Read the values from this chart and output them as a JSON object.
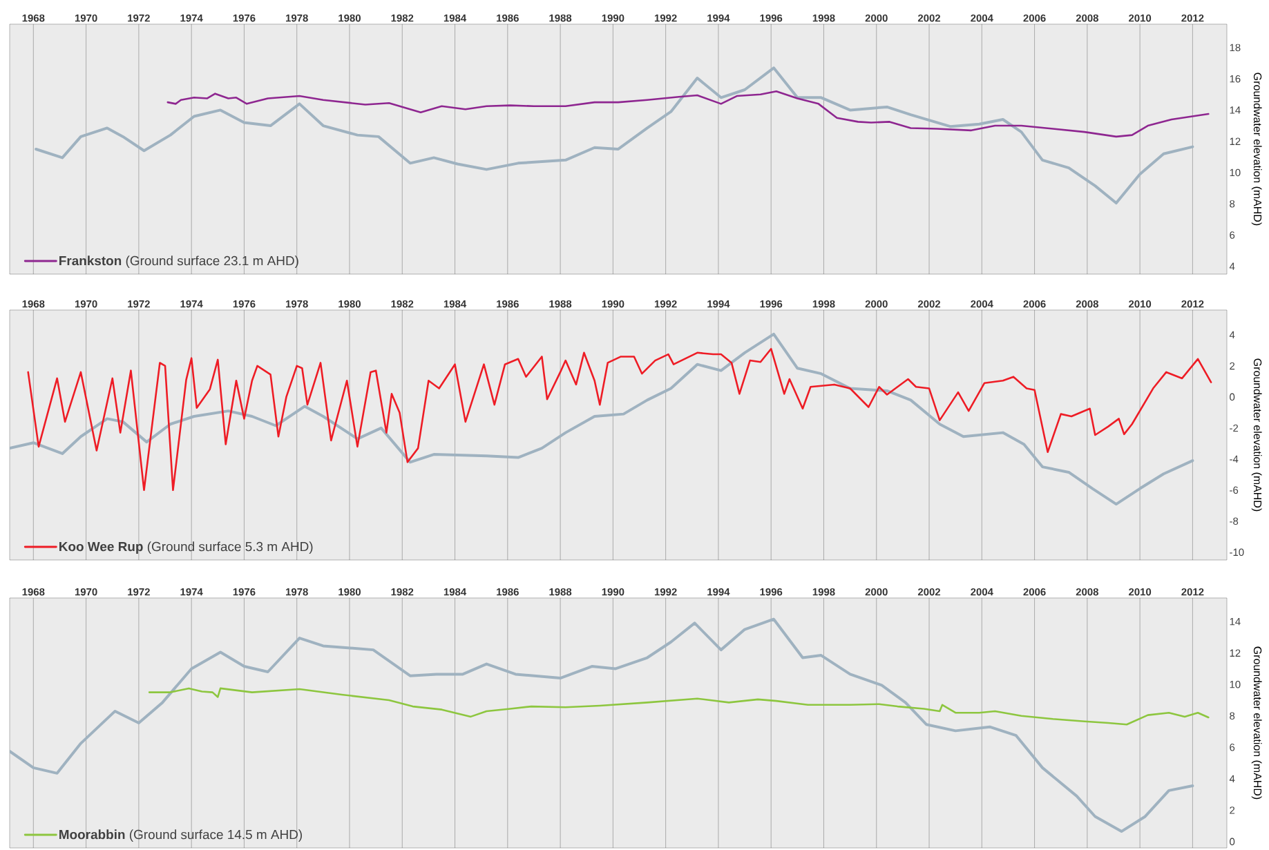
{
  "chart_data": [
    {
      "type": "line",
      "ylabel": "Groundwater elevation (mAHD)",
      "grid": "x",
      "legend": "bottom left",
      "xlim": [
        1967.1,
        2013.3
      ],
      "xticks": [
        1968,
        1970,
        1972,
        1974,
        1976,
        1978,
        1980,
        1982,
        1984,
        1986,
        1988,
        1990,
        1992,
        1994,
        1996,
        1998,
        2000,
        2002,
        2004,
        2006,
        2008,
        2010,
        2012
      ],
      "ylim": [
        3.5,
        19.5
      ],
      "yticks": [
        4,
        6,
        8,
        10,
        12,
        14,
        16,
        18
      ],
      "series": [
        {
          "color": "#9fb2c0",
          "x": [
            1968.1,
            1969.1,
            1969.8,
            1970.8,
            1971.4,
            1972.2,
            1973.2,
            1974.1,
            1975.1,
            1976.0,
            1977.0,
            1978.1,
            1979.0,
            1980.3,
            1981.1,
            1982.3,
            1983.2,
            1984.1,
            1985.2,
            1986.4,
            1988.2,
            1989.3,
            1990.2,
            1991.3,
            1992.2,
            1993.2,
            1994.1,
            1995.0,
            1996.1,
            1997.0,
            1997.9,
            1999.0,
            2000.4,
            2001.3,
            2002.8,
            2003.9,
            2004.8,
            2005.5,
            2006.3,
            2007.3,
            2008.3,
            2009.1,
            2010.0,
            2010.9,
            2012.0
          ],
          "values": [
            11.5,
            10.95,
            12.3,
            12.85,
            12.3,
            11.4,
            12.4,
            13.6,
            14.0,
            13.2,
            13.0,
            14.4,
            13.0,
            12.4,
            12.3,
            10.6,
            10.95,
            10.55,
            10.2,
            10.6,
            10.8,
            11.6,
            11.5,
            12.85,
            13.9,
            16.05,
            14.8,
            15.3,
            16.7,
            14.8,
            14.8,
            14.0,
            14.2,
            13.7,
            12.95,
            13.1,
            13.4,
            12.6,
            10.8,
            10.3,
            9.15,
            8.05,
            9.9,
            11.2,
            11.65
          ]
        },
        {
          "name": "**Frankston** (Ground surface 23.1 m AHD)",
          "color": "#8e2690",
          "x": [
            1973.1,
            1973.4,
            1973.6,
            1974.1,
            1974.6,
            1974.9,
            1975.4,
            1975.7,
            1976.1,
            1976.9,
            1978.1,
            1979.0,
            1980.6,
            1981.5,
            1982.7,
            1983.5,
            1984.4,
            1985.2,
            1986.1,
            1987.0,
            1988.2,
            1989.3,
            1990.2,
            1991.3,
            1992.5,
            1993.2,
            1994.1,
            1994.7,
            1995.6,
            1996.2,
            1997.0,
            1997.8,
            1998.5,
            1999.3,
            1999.8,
            2000.5,
            2001.3,
            2002.3,
            2003.6,
            2004.5,
            2005.5,
            2006.7,
            2007.9,
            2009.1,
            2009.7,
            2010.3,
            2011.2,
            2012.6
          ],
          "values": [
            14.5,
            14.4,
            14.65,
            14.8,
            14.75,
            15.05,
            14.75,
            14.8,
            14.4,
            14.75,
            14.9,
            14.65,
            14.35,
            14.45,
            13.85,
            14.25,
            14.05,
            14.25,
            14.3,
            14.25,
            14.25,
            14.5,
            14.5,
            14.65,
            14.85,
            14.95,
            14.4,
            14.9,
            15.0,
            15.2,
            14.75,
            14.4,
            13.5,
            13.25,
            13.2,
            13.25,
            12.85,
            12.8,
            12.7,
            13.0,
            13.0,
            12.8,
            12.6,
            12.3,
            12.4,
            13.0,
            13.4,
            13.75
          ]
        }
      ]
    },
    {
      "type": "line",
      "ylabel": "Groundwater elevation (mAHD)",
      "grid": "x",
      "legend": "bottom left",
      "xlim": [
        1967.1,
        2013.3
      ],
      "xticks": [
        1968,
        1970,
        1972,
        1974,
        1976,
        1978,
        1980,
        1982,
        1984,
        1986,
        1988,
        1990,
        1992,
        1994,
        1996,
        1998,
        2000,
        2002,
        2004,
        2006,
        2008,
        2010,
        2012
      ],
      "ylim": [
        -10.5,
        5.6
      ],
      "yticks": [
        -10,
        -8,
        -6,
        -4,
        -2,
        0,
        2,
        4
      ],
      "series": [
        {
          "color": "#9fb2c0",
          "x": [
            1967.1,
            1968.0,
            1969.1,
            1969.8,
            1970.8,
            1971.4,
            1972.3,
            1973.2,
            1974.1,
            1975.4,
            1976.3,
            1977.2,
            1978.3,
            1979.0,
            1980.3,
            1981.2,
            1982.3,
            1983.2,
            1985.2,
            1986.4,
            1987.3,
            1988.2,
            1989.3,
            1990.4,
            1991.3,
            1992.2,
            1993.2,
            1994.1,
            1995.0,
            1996.1,
            1997.0,
            1997.9,
            1999.0,
            2000.4,
            2001.3,
            2002.4,
            2003.3,
            2004.8,
            2005.6,
            2006.3,
            2007.3,
            2008.2,
            2009.1,
            2010.0,
            2010.9,
            2012.0
          ],
          "values": [
            -3.3,
            -2.95,
            -3.65,
            -2.55,
            -1.4,
            -1.6,
            -2.9,
            -1.75,
            -1.25,
            -0.9,
            -1.25,
            -1.85,
            -0.6,
            -1.25,
            -2.7,
            -2.0,
            -4.2,
            -3.7,
            -3.8,
            -3.9,
            -3.3,
            -2.3,
            -1.25,
            -1.1,
            -0.2,
            0.55,
            2.1,
            1.7,
            2.85,
            4.05,
            1.85,
            1.5,
            0.55,
            0.4,
            -0.2,
            -1.75,
            -2.55,
            -2.3,
            -3.05,
            -4.5,
            -4.85,
            -5.9,
            -6.9,
            -5.9,
            -4.95,
            -4.1
          ]
        },
        {
          "name": "**Koo Wee Rup** (Ground surface 5.3 m AHD)",
          "color": "#ee1c25",
          "x": [
            1967.8,
            1968.2,
            1968.9,
            1969.2,
            1969.8,
            1970.4,
            1971.0,
            1971.3,
            1971.7,
            1972.2,
            1972.8,
            1973.0,
            1973.3,
            1973.8,
            1974.0,
            1974.2,
            1974.7,
            1975.0,
            1975.3,
            1975.7,
            1976.0,
            1976.3,
            1976.5,
            1977.0,
            1977.3,
            1977.6,
            1978.0,
            1978.2,
            1978.4,
            1978.9,
            1979.3,
            1979.9,
            1980.3,
            1980.8,
            1981.0,
            1981.4,
            1981.6,
            1981.9,
            1982.2,
            1982.6,
            1983.0,
            1983.4,
            1984.0,
            1984.4,
            1985.1,
            1985.5,
            1985.9,
            1986.4,
            1986.7,
            1987.3,
            1987.5,
            1988.0,
            1988.2,
            1988.6,
            1988.9,
            1989.3,
            1989.5,
            1989.8,
            1990.3,
            1990.8,
            1991.1,
            1991.6,
            1992.1,
            1992.3,
            1993.2,
            1993.8,
            1994.1,
            1994.5,
            1994.8,
            1995.2,
            1995.6,
            1996.0,
            1996.5,
            1996.7,
            1997.2,
            1997.5,
            1998.4,
            1999.0,
            1999.7,
            2000.1,
            2000.4,
            2001.2,
            2001.5,
            2002.0,
            2002.4,
            2003.1,
            2003.5,
            2004.1,
            2004.8,
            2005.2,
            2005.7,
            2006.0,
            2006.5,
            2007.0,
            2007.4,
            2008.1,
            2008.3,
            2008.8,
            2009.2,
            2009.4,
            2009.7,
            2010.5,
            2011.0,
            2011.6,
            2012.2,
            2012.7
          ],
          "values": [
            1.6,
            -3.2,
            1.2,
            -1.6,
            1.6,
            -3.45,
            1.2,
            -2.3,
            1.7,
            -6.0,
            2.2,
            2.0,
            -6.0,
            1.1,
            2.5,
            -0.7,
            0.5,
            2.4,
            -3.05,
            1.05,
            -1.4,
            1.05,
            2.0,
            1.45,
            -2.55,
            0.0,
            2.0,
            1.85,
            -0.5,
            2.2,
            -2.8,
            1.05,
            -3.2,
            1.6,
            1.7,
            -2.3,
            0.2,
            -1.0,
            -4.2,
            -3.3,
            1.05,
            0.55,
            2.1,
            -1.6,
            2.1,
            -0.5,
            2.1,
            2.45,
            1.3,
            2.6,
            -0.15,
            1.6,
            2.35,
            0.8,
            2.85,
            1.05,
            -0.5,
            2.2,
            2.6,
            2.6,
            1.5,
            2.35,
            2.75,
            2.1,
            2.85,
            2.75,
            2.75,
            2.2,
            0.2,
            2.35,
            2.25,
            3.1,
            0.2,
            1.15,
            -0.75,
            0.65,
            0.8,
            0.55,
            -0.65,
            0.65,
            0.15,
            1.15,
            0.65,
            0.55,
            -1.5,
            0.3,
            -0.9,
            0.9,
            1.05,
            1.3,
            0.55,
            0.45,
            -3.55,
            -1.1,
            -1.25,
            -0.75,
            -2.45,
            -1.9,
            -1.4,
            -2.4,
            -1.75,
            0.55,
            1.6,
            1.2,
            2.45,
            0.95
          ]
        }
      ]
    },
    {
      "type": "line",
      "ylabel": "Groundwater elevation (mAHD)",
      "grid": "x",
      "legend": "bottom left",
      "xlim": [
        1967.1,
        2013.3
      ],
      "xticks": [
        1968,
        1970,
        1972,
        1974,
        1976,
        1978,
        1980,
        1982,
        1984,
        1986,
        1988,
        1990,
        1992,
        1994,
        1996,
        1998,
        2000,
        2002,
        2004,
        2006,
        2008,
        2010,
        2012
      ],
      "ylim": [
        -0.4,
        15.5
      ],
      "yticks": [
        0,
        2,
        4,
        6,
        8,
        10,
        12,
        14
      ],
      "series": [
        {
          "color": "#9fb2c0",
          "x": [
            1967.1,
            1968.0,
            1968.9,
            1969.8,
            1971.1,
            1972.0,
            1972.9,
            1974.0,
            1975.1,
            1976.0,
            1976.9,
            1978.1,
            1979.0,
            1980.9,
            1982.3,
            1983.3,
            1984.3,
            1985.2,
            1986.3,
            1988.0,
            1989.2,
            1990.1,
            1991.3,
            1992.2,
            1993.1,
            1994.1,
            1995.0,
            1996.1,
            1997.2,
            1997.9,
            1999.0,
            2000.2,
            2001.1,
            2001.9,
            2003.0,
            2004.3,
            2005.3,
            2006.3,
            2007.6,
            2008.3,
            2009.3,
            2010.2,
            2011.1,
            2012.0
          ],
          "values": [
            5.75,
            4.7,
            4.35,
            6.25,
            8.3,
            7.55,
            8.85,
            11.0,
            12.05,
            11.15,
            10.8,
            12.95,
            12.45,
            12.2,
            10.55,
            10.65,
            10.65,
            11.3,
            10.65,
            10.4,
            11.15,
            11.0,
            11.7,
            12.7,
            13.9,
            12.2,
            13.5,
            14.15,
            11.7,
            11.85,
            10.65,
            9.95,
            8.85,
            7.45,
            7.05,
            7.3,
            6.75,
            4.7,
            2.9,
            1.6,
            0.65,
            1.6,
            3.25,
            3.55
          ]
        },
        {
          "name": "**Moorabbin** (Ground surface 14.5 m AHD)",
          "color": "#8dc63f",
          "x": [
            1972.4,
            1973.2,
            1973.9,
            1974.4,
            1974.8,
            1975.0,
            1975.1,
            1976.3,
            1978.1,
            1979.7,
            1981.5,
            1982.4,
            1983.5,
            1984.6,
            1985.2,
            1986.1,
            1986.9,
            1988.2,
            1989.5,
            1990.4,
            1991.3,
            1993.2,
            1994.4,
            1995.5,
            1996.2,
            1997.4,
            1999.0,
            2000.1,
            2000.8,
            2001.8,
            2002.4,
            2002.5,
            2003.0,
            2003.9,
            2004.5,
            2005.5,
            2006.7,
            2007.9,
            2008.8,
            2009.5,
            2010.3,
            2011.1,
            2011.7,
            2012.2,
            2012.6
          ],
          "values": [
            9.5,
            9.5,
            9.75,
            9.55,
            9.5,
            9.2,
            9.75,
            9.5,
            9.7,
            9.35,
            9.0,
            8.6,
            8.4,
            7.95,
            8.3,
            8.45,
            8.6,
            8.55,
            8.65,
            8.75,
            8.85,
            9.1,
            8.85,
            9.05,
            8.95,
            8.7,
            8.7,
            8.75,
            8.6,
            8.45,
            8.3,
            8.7,
            8.2,
            8.2,
            8.3,
            8.0,
            7.8,
            7.65,
            7.55,
            7.45,
            8.05,
            8.2,
            7.95,
            8.2,
            7.9
          ]
        }
      ]
    }
  ]
}
